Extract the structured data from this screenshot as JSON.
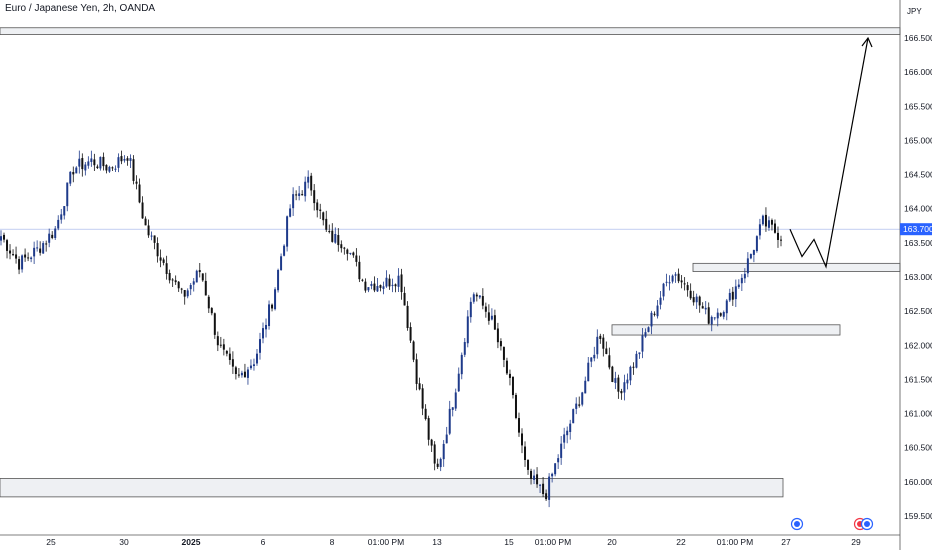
{
  "title": "Euro / Japanese Yen, 2h, OANDA",
  "currency_label": "JPY",
  "current_price_label": "163.700",
  "colors": {
    "up": "#1e3a8a",
    "down": "#111111",
    "zone_fill": "#eef0f3",
    "zone_stroke": "#555555",
    "price_badge": "#2962ff",
    "price_line": "#9fb0e8",
    "axis": "#131722",
    "grid_border": "#555555",
    "event_icon": "#2962ff",
    "event_icon_alt": "#f23645"
  },
  "chart_data": {
    "type": "candlestick",
    "title": "Euro / Japanese Yen, 2h, OANDA",
    "ylim": [
      159.3,
      166.8
    ],
    "y_ticks": [
      "159.500",
      "160.000",
      "160.500",
      "161.000",
      "161.500",
      "162.000",
      "162.500",
      "163.000",
      "163.500",
      "164.000",
      "164.500",
      "165.000",
      "165.500",
      "166.000",
      "166.500"
    ],
    "x_ticks": [
      "25",
      "30",
      "2025",
      "6",
      "8",
      "01:00 PM",
      "13",
      "15",
      "01:00 PM",
      "20",
      "22",
      "01:00 PM",
      "27",
      "29"
    ],
    "current_price": 163.7,
    "waypoints": [
      {
        "close": 163.6
      },
      {
        "close": 163.2
      },
      {
        "close": 163.4
      },
      {
        "close": 163.7
      },
      {
        "close": 164.6
      },
      {
        "close": 164.7
      },
      {
        "close": 164.6
      },
      {
        "close": 164.8
      },
      {
        "close": 163.7
      },
      {
        "close": 163.2
      },
      {
        "close": 162.7
      },
      {
        "close": 163.1
      },
      {
        "close": 162.0
      },
      {
        "close": 161.5
      },
      {
        "close": 161.8
      },
      {
        "close": 162.7
      },
      {
        "close": 164.1
      },
      {
        "close": 164.4
      },
      {
        "close": 163.6
      },
      {
        "close": 163.5
      },
      {
        "close": 162.9
      },
      {
        "close": 162.9
      },
      {
        "close": 163.0
      },
      {
        "close": 161.4
      },
      {
        "close": 160.1
      },
      {
        "close": 161.3
      },
      {
        "close": 162.8
      },
      {
        "close": 162.4
      },
      {
        "close": 161.5
      },
      {
        "close": 160.1
      },
      {
        "close": 159.8
      },
      {
        "close": 160.6
      },
      {
        "close": 161.3
      },
      {
        "close": 162.2
      },
      {
        "close": 161.3
      },
      {
        "close": 161.8
      },
      {
        "close": 162.5
      },
      {
        "close": 163.1
      },
      {
        "close": 162.8
      },
      {
        "close": 162.4
      },
      {
        "close": 162.6
      },
      {
        "close": 163.1
      },
      {
        "close": 163.8
      },
      {
        "close": 163.6
      }
    ],
    "zones": [
      {
        "price_top": 166.65,
        "price_bottom": 166.55,
        "label": ""
      },
      {
        "price_top": 163.2,
        "price_bottom": 163.08,
        "label": ""
      },
      {
        "price_top": 162.3,
        "price_bottom": 162.15,
        "label": ""
      },
      {
        "price_top": 160.05,
        "price_bottom": 159.78,
        "label": ""
      }
    ],
    "projection": [
      163.7,
      163.3,
      163.55,
      163.15,
      166.5
    ]
  }
}
